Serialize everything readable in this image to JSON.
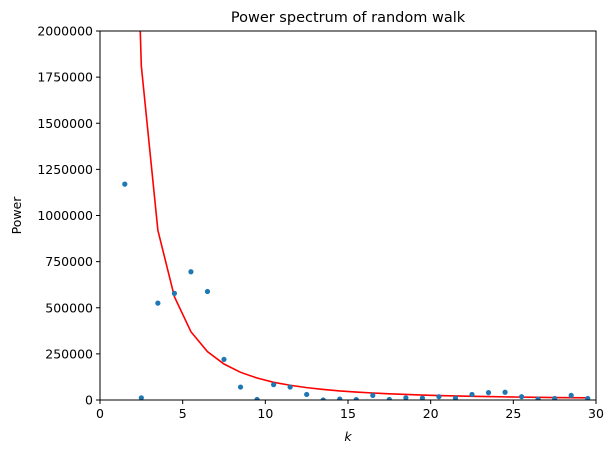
{
  "chart_data": {
    "type": "scatter",
    "title": "Power spectrum of random walk",
    "xlabel": "k",
    "ylabel": "Power",
    "xlim": [
      0,
      30
    ],
    "ylim": [
      0,
      2000000
    ],
    "xticks": [
      0,
      5,
      10,
      15,
      20,
      25,
      30
    ],
    "yticks": [
      0,
      250000,
      500000,
      750000,
      1000000,
      1250000,
      1500000,
      1750000,
      2000000
    ],
    "grid": false,
    "series": [
      {
        "kind": "scatter",
        "color": "#1f77b4",
        "points": [
          [
            1.5,
            1170000
          ],
          [
            2.5,
            12000
          ],
          [
            3.5,
            525000
          ],
          [
            4.5,
            578000
          ],
          [
            5.5,
            695000
          ],
          [
            6.5,
            588000
          ],
          [
            7.5,
            220000
          ],
          [
            8.5,
            70000
          ],
          [
            9.5,
            3000
          ],
          [
            10.5,
            83000
          ],
          [
            11.5,
            70000
          ],
          [
            12.5,
            30000
          ],
          [
            13.5,
            0
          ],
          [
            14.5,
            5000
          ],
          [
            15.5,
            2000
          ],
          [
            16.5,
            25000
          ],
          [
            17.5,
            3000
          ],
          [
            18.5,
            12000
          ],
          [
            19.5,
            10000
          ],
          [
            20.5,
            18000
          ],
          [
            21.5,
            10000
          ],
          [
            22.5,
            30000
          ],
          [
            23.5,
            40000
          ],
          [
            24.5,
            42000
          ],
          [
            25.5,
            18000
          ],
          [
            26.5,
            5000
          ],
          [
            27.5,
            8000
          ],
          [
            28.5,
            25000
          ],
          [
            29.5,
            8000
          ]
        ]
      },
      {
        "kind": "line",
        "color": "#ff0000",
        "points": [
          [
            2.4,
            2100000
          ],
          [
            2.5,
            1810000
          ],
          [
            3.5,
            920000
          ],
          [
            4.5,
            560000
          ],
          [
            5.5,
            370000
          ],
          [
            6.5,
            262000
          ],
          [
            7.5,
            195000
          ],
          [
            8.5,
            150000
          ],
          [
            9.5,
            119000
          ],
          [
            10.5,
            96000
          ],
          [
            11.5,
            80000
          ],
          [
            12.5,
            67000
          ],
          [
            13.5,
            57000
          ],
          [
            14.5,
            49000
          ],
          [
            15.5,
            43000
          ],
          [
            16.5,
            38000
          ],
          [
            17.5,
            33500
          ],
          [
            18.5,
            30000
          ],
          [
            19.5,
            26900
          ],
          [
            20.5,
            24200
          ],
          [
            21.5,
            22000
          ],
          [
            22.5,
            20000
          ],
          [
            23.5,
            18400
          ],
          [
            24.5,
            16900
          ],
          [
            25.5,
            15600
          ],
          [
            26.5,
            14400
          ],
          [
            27.5,
            13400
          ],
          [
            28.5,
            12500
          ],
          [
            29.5,
            11700
          ]
        ]
      }
    ]
  }
}
